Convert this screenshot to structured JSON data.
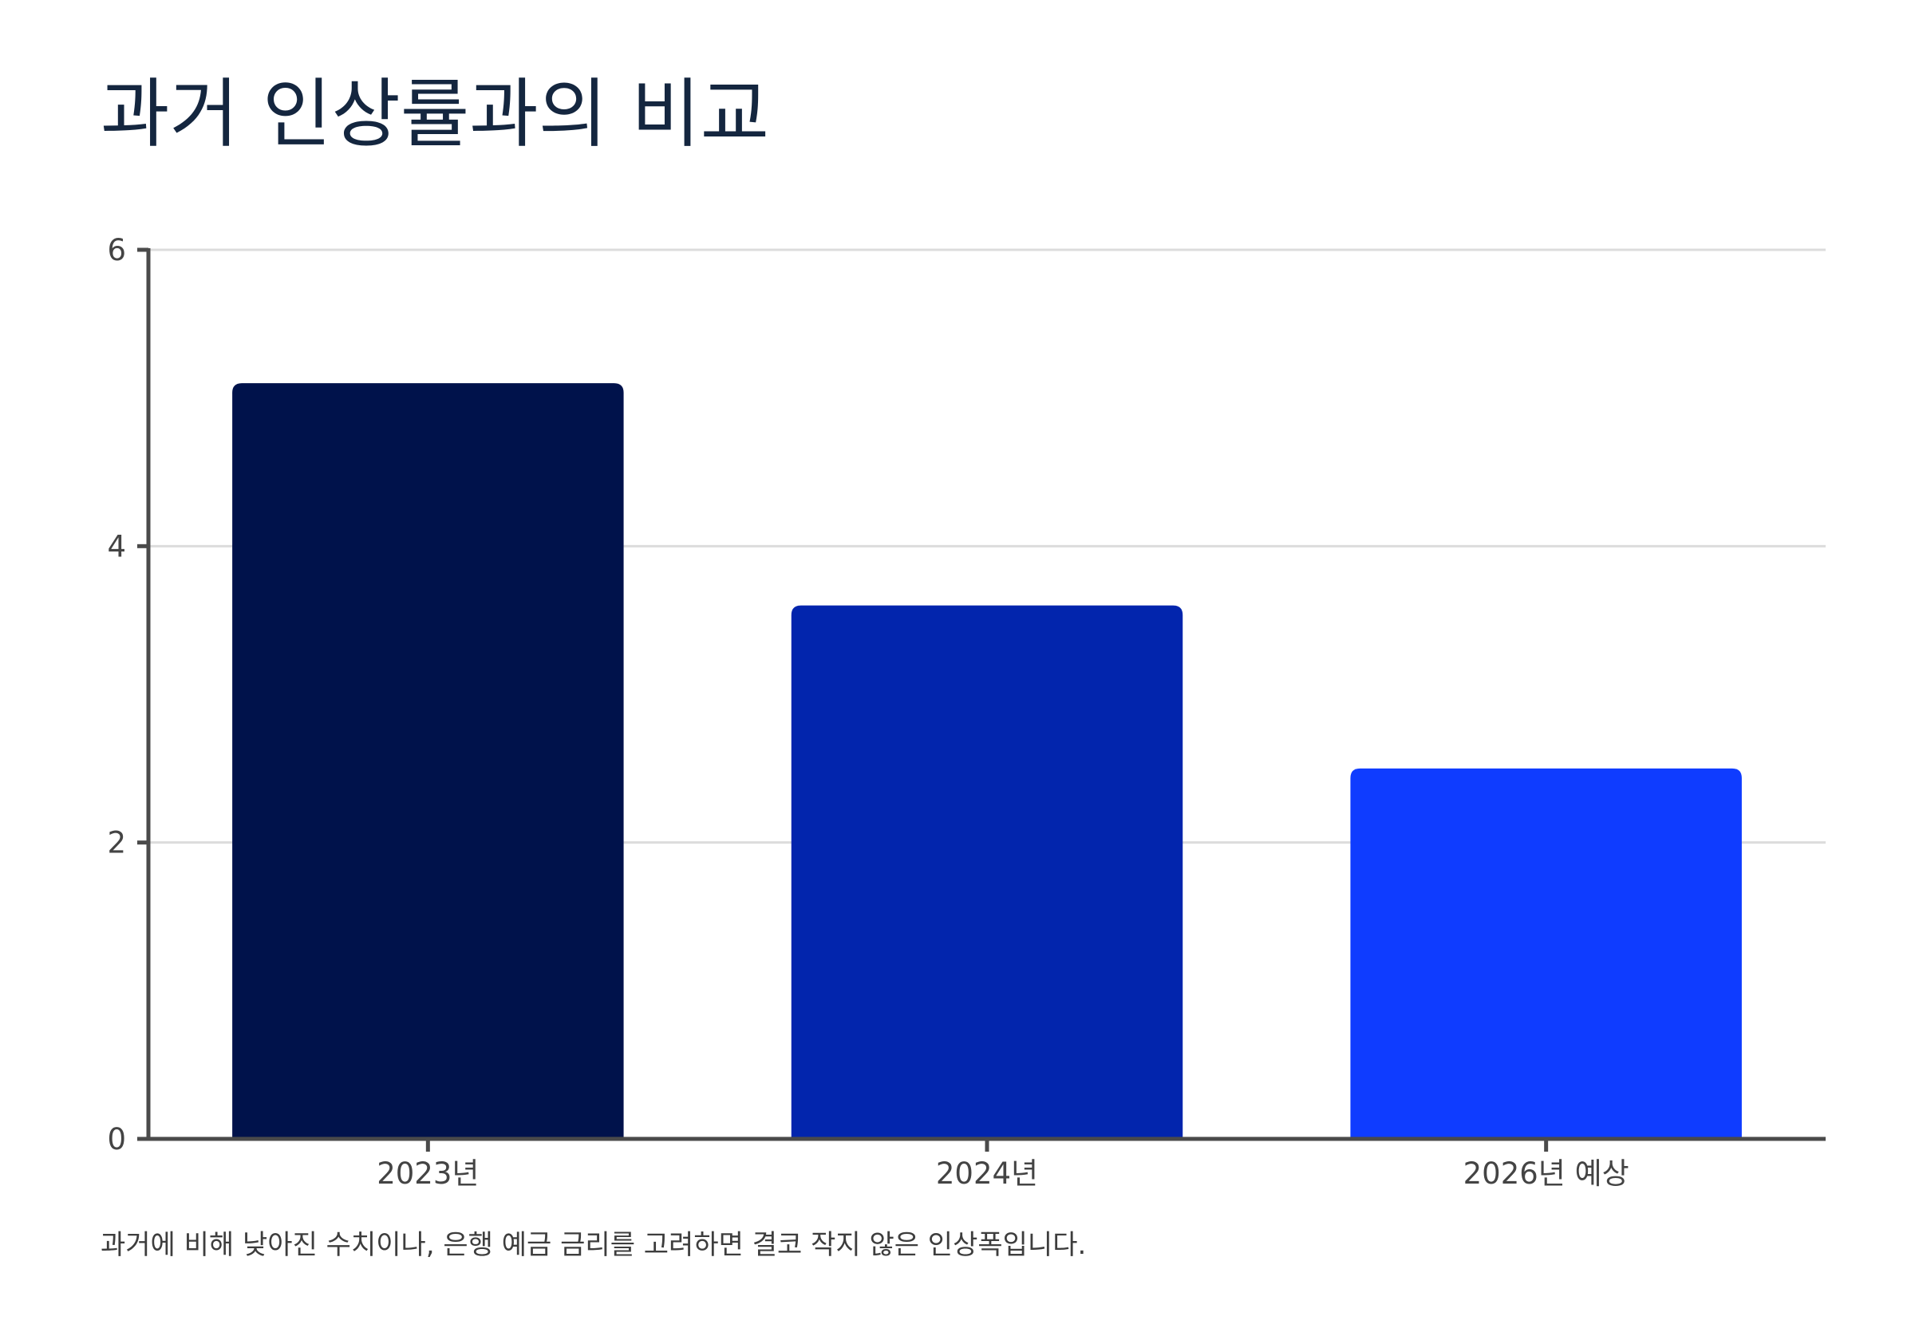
{
  "title": "과거 인상률과의 비교",
  "caption": "과거에 비해 낮아진 수치이나, 은행 예금 금리를 고려하면 결코 작지 않은 인상폭입니다.",
  "colors": {
    "title": "#14263f",
    "axis": "#4a4a4a",
    "grid": "#dcdcdc",
    "tick_text": "#444444",
    "bars": [
      "#00124b",
      "#0225ad",
      "#0f3cff"
    ]
  },
  "chart_data": {
    "type": "bar",
    "categories": [
      "2023년",
      "2024년",
      "2026년 예상"
    ],
    "values": [
      5.1,
      3.6,
      2.5
    ],
    "title": "과거 인상률과의 비교",
    "xlabel": "",
    "ylabel": "",
    "ylim": [
      0,
      6
    ],
    "yticks": [
      0,
      2,
      4,
      6
    ],
    "grid": true,
    "legend": "none"
  }
}
